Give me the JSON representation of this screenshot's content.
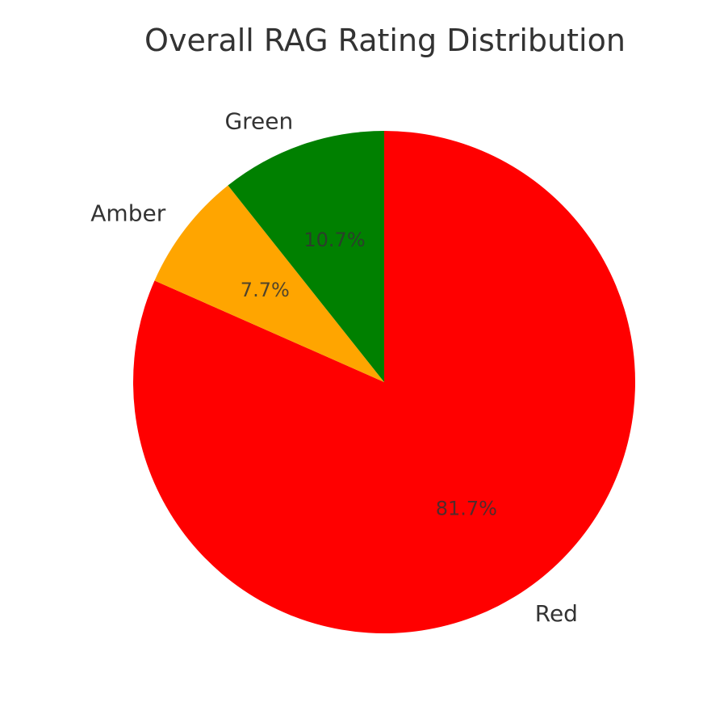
{
  "chart_data": {
    "type": "pie",
    "title": "Overall RAG Rating Distribution",
    "categories": [
      "Red",
      "Amber",
      "Green"
    ],
    "values": [
      81.7,
      7.7,
      10.7
    ],
    "value_labels": [
      "81.7%",
      "7.7%",
      "10.7%"
    ],
    "colors": [
      "#ff0000",
      "#ffa500",
      "#008000"
    ],
    "start_angle": 90,
    "direction": "counterclockwise-from-top-via-right",
    "legend": false
  }
}
